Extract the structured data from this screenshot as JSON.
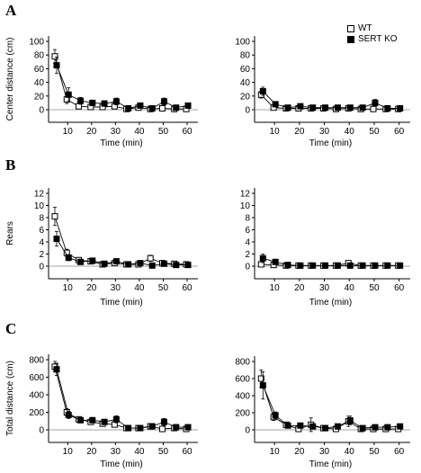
{
  "colors": {
    "wt_fill": "#ffffff",
    "ko_fill": "#000000",
    "line": "#000000",
    "zero_line": "#888888"
  },
  "legend": {
    "wt": "WT",
    "ko": "SERT KO",
    "placement": "top-right"
  },
  "panel_letters": {
    "A": "A",
    "B": "B",
    "C": "C"
  },
  "chart_data": [
    {
      "type": "line",
      "panel": "A",
      "side": "left",
      "title": "",
      "xlabel": "Time (min)",
      "ylabel": "Center distance (cm)",
      "xticks": [
        10,
        20,
        30,
        40,
        50,
        60
      ],
      "yticks": [
        0,
        20,
        40,
        60,
        80,
        100
      ],
      "xlim": [
        2,
        63
      ],
      "ylim": [
        -12,
        100
      ],
      "grid": false,
      "zero_line": true,
      "x": [
        5,
        10,
        15,
        20,
        25,
        30,
        35,
        40,
        45,
        50,
        55,
        60
      ],
      "series": [
        {
          "name": "WT",
          "marker": "open-square",
          "values": [
            78,
            15,
            5,
            4,
            4,
            5,
            1,
            3,
            1,
            2,
            1,
            1
          ],
          "errors": [
            10,
            6,
            3,
            2,
            2,
            2,
            1,
            2,
            1,
            2,
            1,
            1
          ]
        },
        {
          "name": "SERT KO",
          "marker": "filled-square",
          "values": [
            65,
            22,
            13,
            10,
            9,
            12,
            2,
            6,
            2,
            12,
            3,
            6
          ],
          "errors": [
            12,
            10,
            5,
            4,
            4,
            5,
            2,
            3,
            2,
            5,
            2,
            3
          ]
        }
      ]
    },
    {
      "type": "line",
      "panel": "A",
      "side": "right",
      "title": "",
      "xlabel": "Time (min)",
      "ylabel": "",
      "xticks": [
        10,
        20,
        30,
        40,
        50,
        60
      ],
      "yticks": [
        0,
        20,
        40,
        60,
        80,
        100
      ],
      "xlim": [
        2,
        63
      ],
      "ylim": [
        -12,
        100
      ],
      "grid": false,
      "zero_line": true,
      "x": [
        5,
        10,
        15,
        20,
        25,
        30,
        35,
        40,
        45,
        50,
        55,
        60
      ],
      "series": [
        {
          "name": "WT",
          "marker": "open-square",
          "values": [
            22,
            3,
            2,
            2,
            2,
            2,
            1,
            2,
            1,
            1,
            1,
            1
          ],
          "errors": [
            5,
            2,
            1,
            1,
            1,
            1,
            1,
            1,
            1,
            1,
            1,
            1
          ]
        },
        {
          "name": "SERT KO",
          "marker": "filled-square",
          "values": [
            27,
            8,
            3,
            5,
            3,
            3,
            3,
            3,
            3,
            10,
            2,
            2
          ],
          "errors": [
            6,
            3,
            2,
            3,
            2,
            2,
            2,
            2,
            2,
            5,
            1,
            1
          ]
        }
      ]
    },
    {
      "type": "line",
      "panel": "B",
      "side": "left",
      "title": "",
      "xlabel": "Time (min)",
      "ylabel": "Rears",
      "xticks": [
        10,
        20,
        30,
        40,
        50,
        60
      ],
      "yticks": [
        0,
        2,
        4,
        6,
        8,
        10,
        12
      ],
      "xlim": [
        2,
        63
      ],
      "ylim": [
        -1,
        12
      ],
      "grid": false,
      "zero_line": true,
      "x": [
        5,
        10,
        15,
        20,
        25,
        30,
        35,
        40,
        45,
        50,
        55,
        60
      ],
      "series": [
        {
          "name": "WT",
          "marker": "open-square",
          "values": [
            8.2,
            2.2,
            1.0,
            0.8,
            0.3,
            0.5,
            0.3,
            0.3,
            1.3,
            0.5,
            0.4,
            0.3
          ],
          "errors": [
            1.5,
            0.6,
            0.3,
            0.3,
            0.2,
            0.3,
            0.2,
            0.2,
            0.5,
            0.3,
            0.2,
            0.2
          ]
        },
        {
          "name": "SERT KO",
          "marker": "filled-square",
          "values": [
            4.5,
            1.4,
            0.7,
            0.9,
            0.4,
            0.8,
            0.3,
            0.5,
            0.1,
            0.4,
            0.2,
            0.2
          ],
          "errors": [
            1.2,
            0.5,
            0.3,
            0.3,
            0.2,
            0.4,
            0.2,
            0.2,
            0.1,
            0.2,
            0.1,
            0.1
          ]
        }
      ]
    },
    {
      "type": "line",
      "panel": "B",
      "side": "right",
      "title": "",
      "xlabel": "Time (min)",
      "ylabel": "",
      "xticks": [
        10,
        20,
        30,
        40,
        50,
        60
      ],
      "yticks": [
        0,
        2,
        4,
        6,
        8,
        10,
        12
      ],
      "xlim": [
        2,
        63
      ],
      "ylim": [
        -1,
        12
      ],
      "grid": false,
      "zero_line": true,
      "x": [
        5,
        10,
        15,
        20,
        25,
        30,
        35,
        40,
        45,
        50,
        55,
        60
      ],
      "series": [
        {
          "name": "WT",
          "marker": "open-square",
          "values": [
            0.3,
            0.2,
            0.1,
            0.1,
            0.1,
            0.1,
            0.1,
            0.5,
            0.1,
            0.1,
            0.1,
            0.1
          ],
          "errors": [
            0.2,
            0.1,
            0.1,
            0.1,
            0.1,
            0.1,
            0.1,
            0.3,
            0.1,
            0.1,
            0.1,
            0.1
          ]
        },
        {
          "name": "SERT KO",
          "marker": "filled-square",
          "values": [
            1.3,
            0.7,
            0.2,
            0.1,
            0.1,
            0.1,
            0.1,
            0.1,
            0.1,
            0.1,
            0.1,
            0.1
          ],
          "errors": [
            0.7,
            0.4,
            0.1,
            0.1,
            0.1,
            0.1,
            0.1,
            0.1,
            0.1,
            0.1,
            0.1,
            0.1
          ]
        }
      ]
    },
    {
      "type": "line",
      "panel": "C",
      "side": "left",
      "title": "",
      "xlabel": "Time (min)",
      "ylabel": "Total distance (cm)",
      "xticks": [
        10,
        20,
        30,
        40,
        50,
        60
      ],
      "yticks": [
        0,
        200,
        400,
        600,
        800
      ],
      "xlim": [
        2,
        63
      ],
      "ylim": [
        -100,
        800
      ],
      "grid": false,
      "zero_line": true,
      "x": [
        5,
        10,
        15,
        20,
        25,
        30,
        35,
        40,
        45,
        50,
        55,
        60
      ],
      "series": [
        {
          "name": "WT",
          "marker": "open-square",
          "values": [
            720,
            200,
            120,
            90,
            70,
            60,
            20,
            20,
            40,
            10,
            20,
            10
          ],
          "errors": [
            60,
            40,
            30,
            25,
            20,
            25,
            10,
            10,
            20,
            10,
            10,
            10
          ]
        },
        {
          "name": "SERT KO",
          "marker": "filled-square",
          "values": [
            690,
            170,
            110,
            110,
            90,
            120,
            20,
            20,
            40,
            90,
            30,
            30
          ],
          "errors": [
            70,
            40,
            30,
            30,
            25,
            40,
            10,
            10,
            20,
            40,
            15,
            15
          ]
        }
      ]
    },
    {
      "type": "line",
      "panel": "C",
      "side": "right",
      "title": "",
      "xlabel": "Time (min)",
      "ylabel": "",
      "xticks": [
        10,
        20,
        30,
        40,
        50,
        60
      ],
      "yticks": [
        0,
        200,
        400,
        600,
        800
      ],
      "xlim": [
        2,
        63
      ],
      "ylim": [
        -100,
        800
      ],
      "grid": false,
      "zero_line": true,
      "x": [
        5,
        10,
        15,
        20,
        25,
        30,
        35,
        40,
        45,
        50,
        55,
        60
      ],
      "series": [
        {
          "name": "WT",
          "marker": "open-square",
          "values": [
            600,
            150,
            60,
            10,
            60,
            20,
            10,
            100,
            10,
            10,
            10,
            10
          ],
          "errors": [
            100,
            40,
            25,
            15,
            80,
            15,
            10,
            60,
            10,
            10,
            10,
            10
          ]
        },
        {
          "name": "SERT KO",
          "marker": "filled-square",
          "values": [
            520,
            170,
            50,
            50,
            40,
            20,
            40,
            110,
            20,
            30,
            30,
            40
          ],
          "errors": [
            160,
            40,
            20,
            20,
            20,
            15,
            20,
            50,
            15,
            15,
            15,
            15
          ]
        }
      ]
    }
  ]
}
